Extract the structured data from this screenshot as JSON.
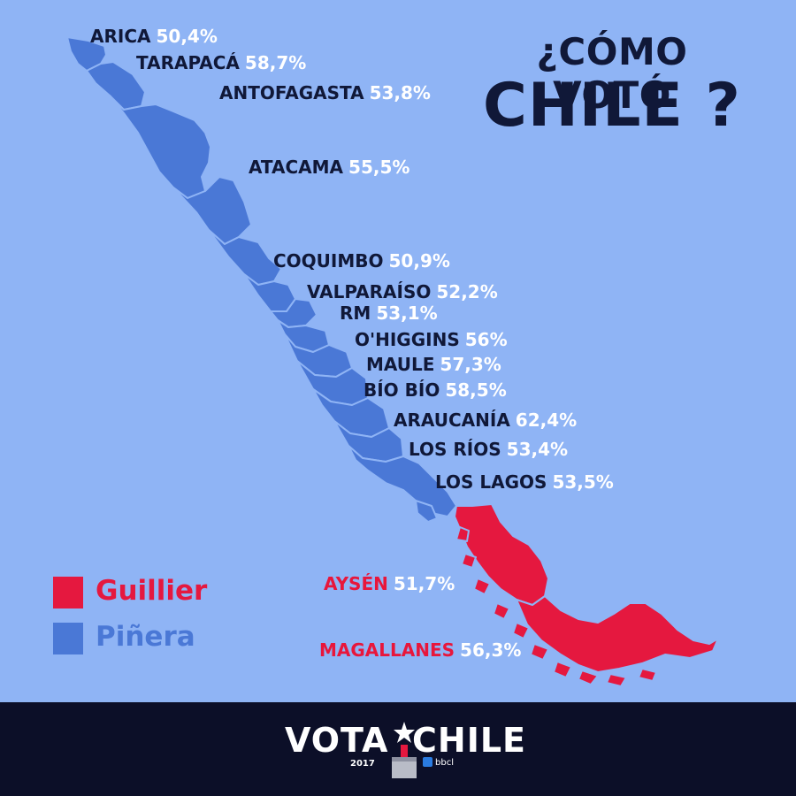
{
  "title": {
    "line1": "¿CÓMO VOTÓ",
    "line2": "CHILE ?"
  },
  "colors": {
    "background": "#8fb4f5",
    "pinera": "#4a78d6",
    "guillier": "#e5183f",
    "label_name": "#101838",
    "label_value": "#ffffff",
    "footer": "#0c0f28"
  },
  "regions": [
    {
      "name": "ARICA",
      "value": "50,4%",
      "winner": "Piñera"
    },
    {
      "name": "TARAPACÁ",
      "value": "58,7%",
      "winner": "Piñera"
    },
    {
      "name": "ANTOFAGASTA",
      "value": "53,8%",
      "winner": "Piñera"
    },
    {
      "name": "ATACAMA",
      "value": "55,5%",
      "winner": "Piñera"
    },
    {
      "name": "COQUIMBO",
      "value": "50,9%",
      "winner": "Piñera"
    },
    {
      "name": "VALPARAÍSO",
      "value": "52,2%",
      "winner": "Piñera"
    },
    {
      "name": "RM",
      "value": "53,1%",
      "winner": "Piñera"
    },
    {
      "name": "O'HIGGINS",
      "value": "56%",
      "winner": "Piñera"
    },
    {
      "name": "MAULE",
      "value": "57,3%",
      "winner": "Piñera"
    },
    {
      "name": "BÍO BÍO",
      "value": "58,5%",
      "winner": "Piñera"
    },
    {
      "name": "ARAUCANÍA",
      "value": "62,4%",
      "winner": "Piñera"
    },
    {
      "name": "LOS RÍOS",
      "value": "53,4%",
      "winner": "Piñera"
    },
    {
      "name": "LOS LAGOS",
      "value": "53,5%",
      "winner": "Piñera"
    },
    {
      "name": "AYSÉN",
      "value": "51,7%",
      "winner": "Guillier"
    },
    {
      "name": "MAGALLANES",
      "value": "56,3%",
      "winner": "Guillier"
    }
  ],
  "legend": [
    {
      "label": "Guillier",
      "color": "#e5183f"
    },
    {
      "label": "Piñera",
      "color": "#4a78d6"
    }
  ],
  "footer": {
    "brand_left": "VOTA",
    "brand_right": "CHILE",
    "year": "2017",
    "handle": "bbcl",
    "icon": "ballot-box-icon"
  }
}
